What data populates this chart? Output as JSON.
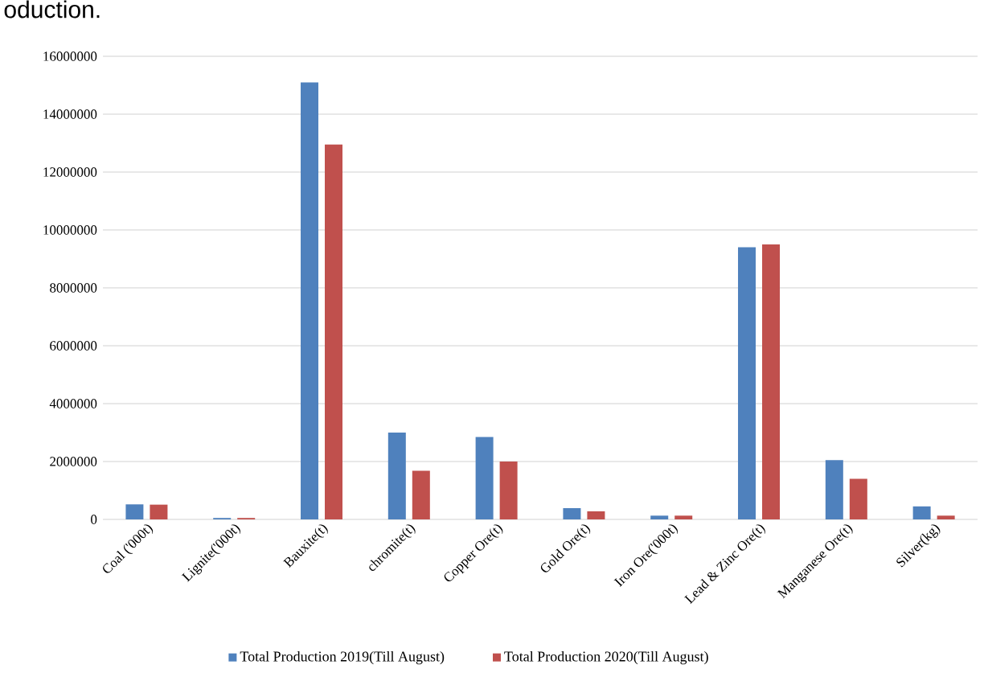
{
  "chart_data": {
    "type": "bar",
    "annotations": [
      "oduction."
    ],
    "categories": [
      "Coal ('000t)",
      "Lignite('000t)",
      "Bauxite(t)",
      "chromite(t)",
      "Copper Ore(t)",
      "Gold Ore(t)",
      "Iron Ore('000t)",
      "Lead & Zinc Ore(t)",
      "Manganese Ore(t)",
      "Silver(kg)"
    ],
    "series": [
      {
        "name": "Total Production 2019(Till August)",
        "color": "#4f81bd",
        "values": [
          520000,
          50000,
          15100000,
          3000000,
          2850000,
          390000,
          130000,
          9400000,
          2050000,
          450000
        ]
      },
      {
        "name": "Total Production 2020(Till August)",
        "color": "#c0504d",
        "values": [
          510000,
          50000,
          12950000,
          1680000,
          2000000,
          280000,
          130000,
          9500000,
          1400000,
          130000
        ]
      }
    ],
    "ylim": [
      0,
      16000000
    ],
    "yticks": [
      0,
      2000000,
      4000000,
      6000000,
      8000000,
      10000000,
      12000000,
      14000000,
      16000000
    ],
    "grid": "y",
    "legend": "bottom"
  }
}
